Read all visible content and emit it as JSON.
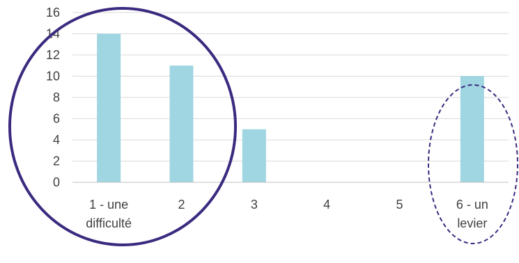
{
  "chart_data": {
    "type": "bar",
    "categories": [
      [
        "1 - une",
        "difficulté"
      ],
      [
        "2"
      ],
      [
        "3"
      ],
      [
        "4"
      ],
      [
        "5"
      ],
      [
        "6 - un",
        "levier"
      ]
    ],
    "values": [
      14,
      11,
      5,
      0,
      0,
      10
    ],
    "ylim": [
      0,
      16
    ],
    "yticks": [
      0,
      2,
      4,
      6,
      8,
      10,
      12,
      14,
      16
    ],
    "grid": true,
    "colors": {
      "bar": "#9fd6e2",
      "grid": "#d9d9d9",
      "axis": "#bfbfbf",
      "circle": "#3b2a7f"
    },
    "annotations": [
      {
        "type": "ellipse",
        "style": "solid",
        "encloses": [
          0,
          1
        ]
      },
      {
        "type": "ellipse",
        "style": "dashed",
        "encloses": [
          5
        ]
      }
    ]
  }
}
